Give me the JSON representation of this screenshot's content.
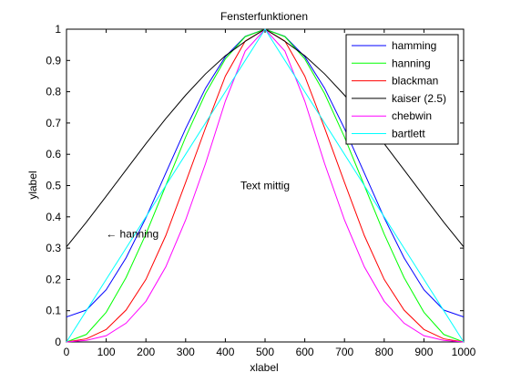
{
  "chart_data": {
    "type": "line",
    "title": "Fensterfunktionen",
    "xlabel": "xlabel",
    "ylabel": "ylabel",
    "xlim": [
      0,
      1000
    ],
    "ylim": [
      0,
      1
    ],
    "xticks": [
      0,
      100,
      200,
      300,
      400,
      500,
      600,
      700,
      800,
      900,
      1000
    ],
    "yticks": [
      0,
      0.1,
      0.2,
      0.3,
      0.4,
      0.5,
      0.6,
      0.7,
      0.8,
      0.9,
      1
    ],
    "grid": false,
    "legend_position": "top-right",
    "x": [
      0,
      50,
      100,
      150,
      200,
      250,
      300,
      350,
      400,
      450,
      500,
      550,
      600,
      650,
      700,
      750,
      800,
      850,
      900,
      950,
      1000
    ],
    "series": [
      {
        "name": "hamming",
        "color": "#0000ff",
        "values": [
          0.08,
          0.102,
          0.167,
          0.269,
          0.397,
          0.54,
          0.682,
          0.811,
          0.912,
          0.977,
          1.0,
          0.977,
          0.912,
          0.811,
          0.682,
          0.54,
          0.397,
          0.269,
          0.167,
          0.102,
          0.08
        ]
      },
      {
        "name": "hanning",
        "color": "#00ff00",
        "values": [
          0.0,
          0.024,
          0.095,
          0.206,
          0.345,
          0.5,
          0.655,
          0.794,
          0.905,
          0.976,
          1.0,
          0.976,
          0.905,
          0.794,
          0.655,
          0.5,
          0.345,
          0.206,
          0.095,
          0.024,
          0.0
        ]
      },
      {
        "name": "blackman",
        "color": "#ff0000",
        "values": [
          0.0,
          0.01,
          0.04,
          0.102,
          0.2,
          0.34,
          0.51,
          0.684,
          0.85,
          0.962,
          1.0,
          0.962,
          0.85,
          0.684,
          0.51,
          0.34,
          0.2,
          0.102,
          0.04,
          0.01,
          0.0
        ]
      },
      {
        "name": "kaiser (2.5)",
        "color": "#000000",
        "values": [
          0.304,
          0.383,
          0.466,
          0.55,
          0.634,
          0.714,
          0.789,
          0.857,
          0.915,
          0.961,
          1.0,
          0.961,
          0.915,
          0.857,
          0.789,
          0.714,
          0.634,
          0.55,
          0.466,
          0.383,
          0.304
        ]
      },
      {
        "name": "chebwin",
        "color": "#ff00ff",
        "values": [
          0.0,
          0.005,
          0.02,
          0.06,
          0.13,
          0.24,
          0.39,
          0.57,
          0.77,
          0.93,
          1.0,
          0.93,
          0.77,
          0.57,
          0.39,
          0.24,
          0.13,
          0.06,
          0.02,
          0.005,
          0.0
        ]
      },
      {
        "name": "bartlett",
        "color": "#00ffff",
        "values": [
          0.0,
          0.1,
          0.2,
          0.3,
          0.4,
          0.5,
          0.6,
          0.7,
          0.8,
          0.9,
          1.0,
          0.9,
          0.8,
          0.7,
          0.6,
          0.5,
          0.4,
          0.3,
          0.2,
          0.1,
          0.0
        ]
      }
    ],
    "annotations": [
      {
        "text": "Text mittig",
        "x": 500,
        "y": 0.5
      },
      {
        "text": "← hanning",
        "x": 200,
        "y": 0.345
      }
    ]
  }
}
